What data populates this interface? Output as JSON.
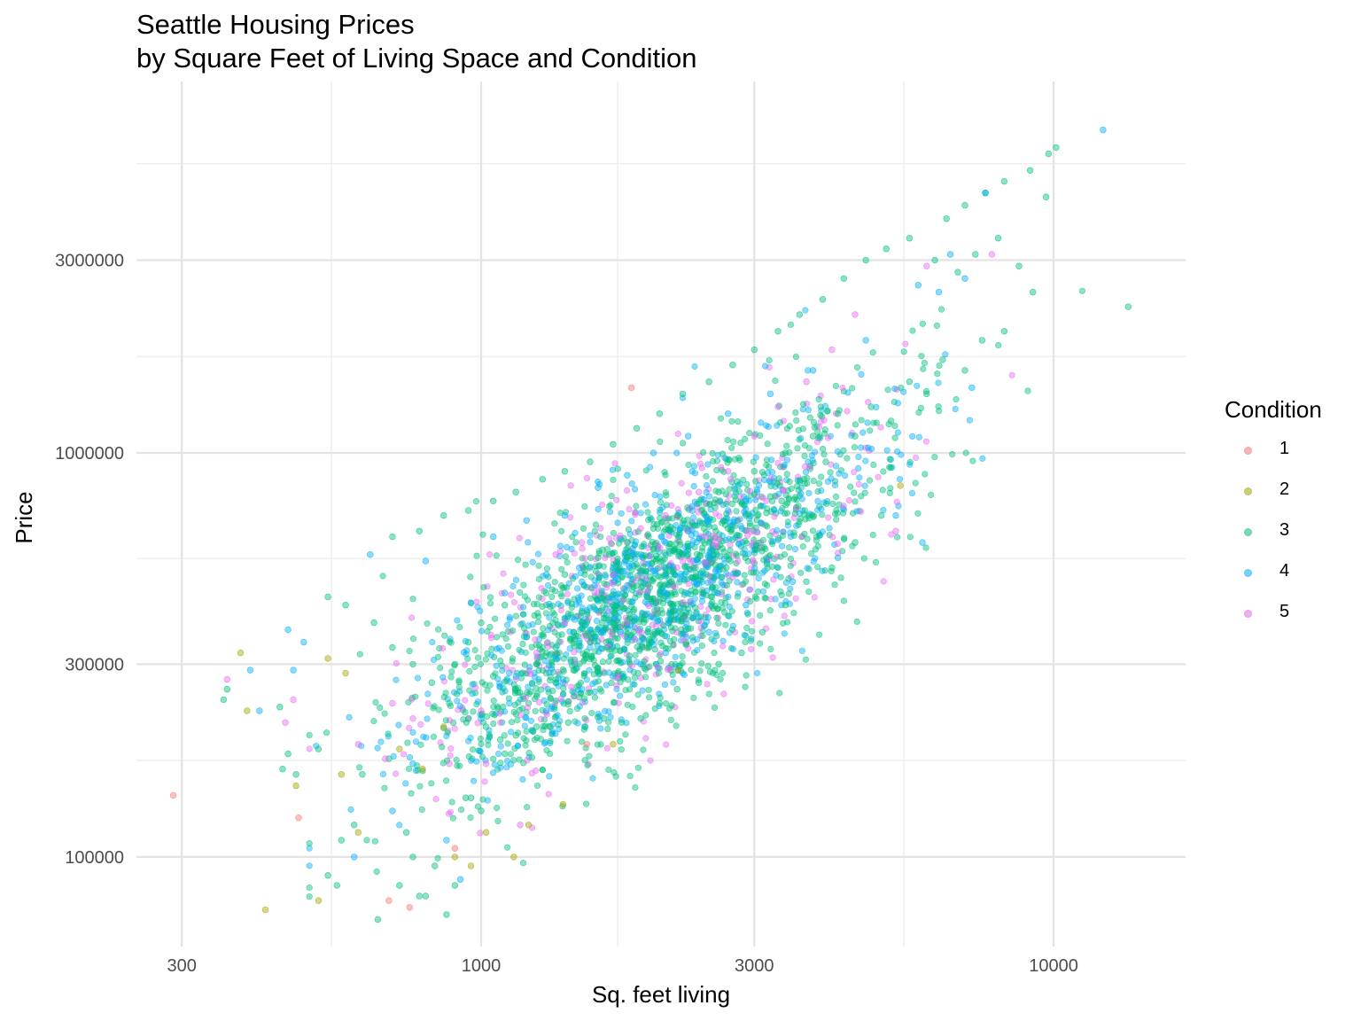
{
  "chart_data": {
    "type": "scatter",
    "title": "Seattle Housing Prices",
    "subtitle": "by Square Feet of Living Space and Condition",
    "xlabel": "Sq. feet living",
    "ylabel": "Price",
    "x_scale": "log10",
    "y_scale": "log10",
    "xlim": [
      250,
      17000
    ],
    "ylim": [
      60000,
      8300000
    ],
    "x_ticks": [
      300,
      1000,
      3000,
      10000
    ],
    "x_tick_labels": [
      "300",
      "1000",
      "3000",
      "10000"
    ],
    "y_ticks": [
      100000,
      300000,
      1000000,
      3000000
    ],
    "y_tick_labels": [
      "100000",
      "300000",
      "1000000",
      "3000000"
    ],
    "grid": true,
    "legend": {
      "title": "Condition",
      "position": "right",
      "entries": [
        {
          "label": "1",
          "color": "#F8766D"
        },
        {
          "label": "2",
          "color": "#A3A500"
        },
        {
          "label": "3",
          "color": "#00BF7D"
        },
        {
          "label": "4",
          "color": "#00B0F6"
        },
        {
          "label": "5",
          "color": "#E76BF3"
        }
      ]
    },
    "point_alpha": 0.45,
    "series": [
      {
        "name": "1",
        "color": "#F8766D",
        "points": [
          [
            290,
            142000
          ],
          [
            480,
            125000
          ],
          [
            690,
            78000
          ],
          [
            750,
            75000
          ],
          [
            900,
            105000
          ],
          [
            1530,
            190000
          ],
          [
            1830,
            1450000
          ]
        ]
      },
      {
        "name": "2",
        "color": "#A3A500",
        "points": [
          [
            380,
            320000
          ],
          [
            390,
            230000
          ],
          [
            420,
            74000
          ],
          [
            475,
            150000
          ],
          [
            520,
            78000
          ],
          [
            540,
            310000
          ],
          [
            570,
            160000
          ],
          [
            580,
            285000
          ],
          [
            610,
            115000
          ],
          [
            720,
            185000
          ],
          [
            790,
            165000
          ],
          [
            860,
            210000
          ],
          [
            900,
            100000
          ],
          [
            960,
            95000
          ],
          [
            1020,
            115000
          ],
          [
            1140,
            100000
          ],
          [
            1210,
            120000
          ],
          [
            1390,
            135000
          ],
          [
            1700,
            190000
          ],
          [
            2210,
            290000
          ],
          [
            5400,
            830000
          ]
        ]
      },
      {
        "name": "3",
        "color": "#00BF7D",
        "points": [
          [
            360,
            260000
          ],
          [
            355,
            245000
          ],
          [
            445,
            235000
          ],
          [
            450,
            165000
          ],
          [
            475,
            160000
          ],
          [
            460,
            180000
          ],
          [
            520,
            185000
          ],
          [
            540,
            90000
          ],
          [
            560,
            85000
          ],
          [
            570,
            110000
          ],
          [
            600,
            120000
          ],
          [
            620,
            160000
          ],
          [
            660,
            70000
          ],
          [
            690,
            175000
          ],
          [
            720,
            85000
          ],
          [
            740,
            115000
          ],
          [
            760,
            100000
          ],
          [
            780,
            80000
          ],
          [
            800,
            80000
          ],
          [
            830,
            95000
          ],
          [
            870,
            72000
          ],
          [
            900,
            85000
          ],
          [
            940,
            140000
          ],
          [
            960,
            140000
          ],
          [
            1000,
            130000
          ],
          [
            1100,
            180000
          ],
          [
            1250,
            210000
          ],
          [
            540,
            440000
          ],
          [
            580,
            420000
          ],
          [
            650,
            380000
          ],
          [
            700,
            330000
          ],
          [
            760,
            300000
          ],
          [
            820,
            270000
          ],
          [
            880,
            240000
          ],
          [
            950,
            220000
          ],
          [
            1020,
            210000
          ],
          [
            1080,
            195000
          ],
          [
            1150,
            200000
          ],
          [
            1230,
            205000
          ],
          [
            1320,
            210000
          ],
          [
            1420,
            215000
          ],
          [
            1520,
            210000
          ],
          [
            1640,
            220000
          ],
          [
            1760,
            215000
          ],
          [
            1900,
            220000
          ],
          [
            2050,
            240000
          ],
          [
            2200,
            260000
          ],
          [
            2400,
            270000
          ],
          [
            2600,
            300000
          ],
          [
            2850,
            320000
          ],
          [
            3100,
            360000
          ],
          [
            3400,
            420000
          ],
          [
            3700,
            480000
          ],
          [
            4100,
            520000
          ],
          [
            4500,
            600000
          ],
          [
            5000,
            700000
          ],
          [
            700,
            620000
          ],
          [
            780,
            640000
          ],
          [
            860,
            700000
          ],
          [
            950,
            720000
          ],
          [
            1050,
            760000
          ],
          [
            1150,
            800000
          ],
          [
            1280,
            860000
          ],
          [
            1400,
            900000
          ],
          [
            1550,
            950000
          ],
          [
            1700,
            1050000
          ],
          [
            1870,
            1150000
          ],
          [
            2050,
            1250000
          ],
          [
            2250,
            1400000
          ],
          [
            2500,
            1500000
          ],
          [
            2750,
            1650000
          ],
          [
            3000,
            1800000
          ],
          [
            3300,
            2000000
          ],
          [
            3600,
            2200000
          ],
          [
            3950,
            2400000
          ],
          [
            4300,
            2700000
          ],
          [
            4700,
            3000000
          ],
          [
            5100,
            3200000
          ],
          [
            5600,
            3400000
          ],
          [
            6200,
            3000000
          ],
          [
            6800,
            2800000
          ],
          [
            7300,
            3100000
          ],
          [
            8000,
            3400000
          ],
          [
            8700,
            2900000
          ],
          [
            1000,
            380000
          ],
          [
            1100,
            420000
          ],
          [
            1200,
            350000
          ],
          [
            1300,
            450000
          ],
          [
            1400,
            500000
          ],
          [
            1500,
            380000
          ],
          [
            1600,
            550000
          ],
          [
            1700,
            420000
          ],
          [
            1800,
            600000
          ],
          [
            1900,
            480000
          ],
          [
            2000,
            650000
          ],
          [
            2100,
            520000
          ],
          [
            2200,
            700000
          ],
          [
            2300,
            560000
          ],
          [
            2400,
            750000
          ],
          [
            2500,
            600000
          ],
          [
            2600,
            800000
          ],
          [
            2700,
            650000
          ],
          [
            2800,
            850000
          ],
          [
            2900,
            700000
          ],
          [
            3000,
            900000
          ],
          [
            3200,
            780000
          ],
          [
            3400,
            1000000
          ],
          [
            3600,
            850000
          ],
          [
            3800,
            1100000
          ],
          [
            4000,
            950000
          ],
          [
            4200,
            1250000
          ],
          [
            4500,
            1100000
          ],
          [
            4800,
            1300000
          ],
          [
            5200,
            1200000
          ],
          [
            5600,
            1500000
          ],
          [
            6000,
            1400000
          ],
          [
            6400,
            1700000
          ],
          [
            7000,
            1600000
          ],
          [
            7500,
            1900000
          ],
          [
            8200,
            2000000
          ],
          [
            9200,
            2500000
          ],
          [
            9800,
            5500000
          ],
          [
            10100,
            5700000
          ],
          [
            9100,
            5000000
          ],
          [
            8200,
            4700000
          ],
          [
            7600,
            4400000
          ],
          [
            7000,
            4100000
          ],
          [
            9700,
            4300000
          ],
          [
            6500,
            3800000
          ],
          [
            1250,
            300000
          ],
          [
            1350,
            330000
          ],
          [
            1450,
            360000
          ],
          [
            1550,
            340000
          ],
          [
            1650,
            390000
          ],
          [
            1750,
            370000
          ],
          [
            1850,
            410000
          ],
          [
            1950,
            440000
          ],
          [
            2150,
            480000
          ],
          [
            2350,
            520000
          ],
          [
            2550,
            560000
          ],
          [
            2750,
            610000
          ],
          [
            2950,
            660000
          ],
          [
            3150,
            710000
          ],
          [
            3350,
            760000
          ],
          [
            900,
            300000
          ],
          [
            950,
            340000
          ],
          [
            1050,
            280000
          ],
          [
            1150,
            260000
          ],
          [
            1250,
            250000
          ],
          [
            1350,
            270000
          ],
          [
            1450,
            290000
          ],
          [
            13500,
            2300000
          ]
        ]
      },
      {
        "name": "4",
        "color": "#00B0F6",
        "points": [
          [
            395,
            290000
          ],
          [
            410,
            230000
          ],
          [
            460,
            365000
          ],
          [
            470,
            290000
          ],
          [
            490,
            340000
          ],
          [
            600,
            100000
          ],
          [
            640,
            560000
          ],
          [
            700,
            130000
          ],
          [
            760,
            170000
          ],
          [
            800,
            540000
          ],
          [
            870,
            110000
          ],
          [
            920,
            88000
          ],
          [
            1000,
            220000
          ],
          [
            1050,
            620000
          ],
          [
            1120,
            240000
          ],
          [
            1200,
            680000
          ],
          [
            1300,
            230000
          ],
          [
            1400,
            700000
          ],
          [
            1500,
            260000
          ],
          [
            1600,
            820000
          ],
          [
            1700,
            280000
          ],
          [
            1800,
            880000
          ],
          [
            1900,
            300000
          ],
          [
            2000,
            1000000
          ],
          [
            2100,
            320000
          ],
          [
            2300,
            1100000
          ],
          [
            2500,
            360000
          ],
          [
            2700,
            1250000
          ],
          [
            2900,
            420000
          ],
          [
            3200,
            1400000
          ],
          [
            3500,
            480000
          ],
          [
            3800,
            1600000
          ],
          [
            4200,
            550000
          ],
          [
            4700,
            1900000
          ],
          [
            5300,
            700000
          ],
          [
            5900,
            600000
          ],
          [
            6300,
            2500000
          ],
          [
            6600,
            3100000
          ],
          [
            7000,
            2700000
          ],
          [
            7600,
            4400000
          ],
          [
            12200,
            6300000
          ],
          [
            7200,
            1450000
          ],
          [
            5800,
            2600000
          ],
          [
            1100,
            450000
          ],
          [
            1300,
            500000
          ],
          [
            1500,
            480000
          ],
          [
            1700,
            520000
          ],
          [
            1900,
            560000
          ],
          [
            2100,
            600000
          ],
          [
            2300,
            640000
          ],
          [
            2500,
            680000
          ],
          [
            2700,
            720000
          ],
          [
            2900,
            760000
          ],
          [
            1200,
            350000
          ],
          [
            1400,
            390000
          ],
          [
            1600,
            430000
          ],
          [
            1800,
            470000
          ],
          [
            2000,
            510000
          ],
          [
            1150,
            280000
          ],
          [
            1350,
            310000
          ],
          [
            1550,
            330000
          ],
          [
            1750,
            360000
          ],
          [
            1950,
            400000
          ]
        ]
      },
      {
        "name": "5",
        "color": "#E76BF3",
        "points": [
          [
            360,
            275000
          ],
          [
            455,
            215000
          ],
          [
            470,
            245000
          ],
          [
            610,
            190000
          ],
          [
            680,
            175000
          ],
          [
            700,
            240000
          ],
          [
            760,
            220000
          ],
          [
            880,
            170000
          ],
          [
            1000,
            230000
          ],
          [
            1020,
            170000
          ],
          [
            1170,
            120000
          ],
          [
            1250,
            320000
          ],
          [
            1400,
            380000
          ],
          [
            1500,
            600000
          ],
          [
            1700,
            500000
          ],
          [
            1900,
            650000
          ],
          [
            2100,
            700000
          ],
          [
            2400,
            800000
          ],
          [
            2700,
            900000
          ],
          [
            3000,
            1100000
          ],
          [
            3300,
            1300000
          ],
          [
            3700,
            1500000
          ],
          [
            4100,
            1800000
          ],
          [
            4500,
            2200000
          ],
          [
            5300,
            640000
          ],
          [
            6000,
            2900000
          ],
          [
            7800,
            3100000
          ],
          [
            1350,
            560000
          ],
          [
            1600,
            450000
          ],
          [
            1800,
            380000
          ],
          [
            2200,
            520000
          ],
          [
            2600,
            610000
          ]
        ]
      }
    ]
  }
}
